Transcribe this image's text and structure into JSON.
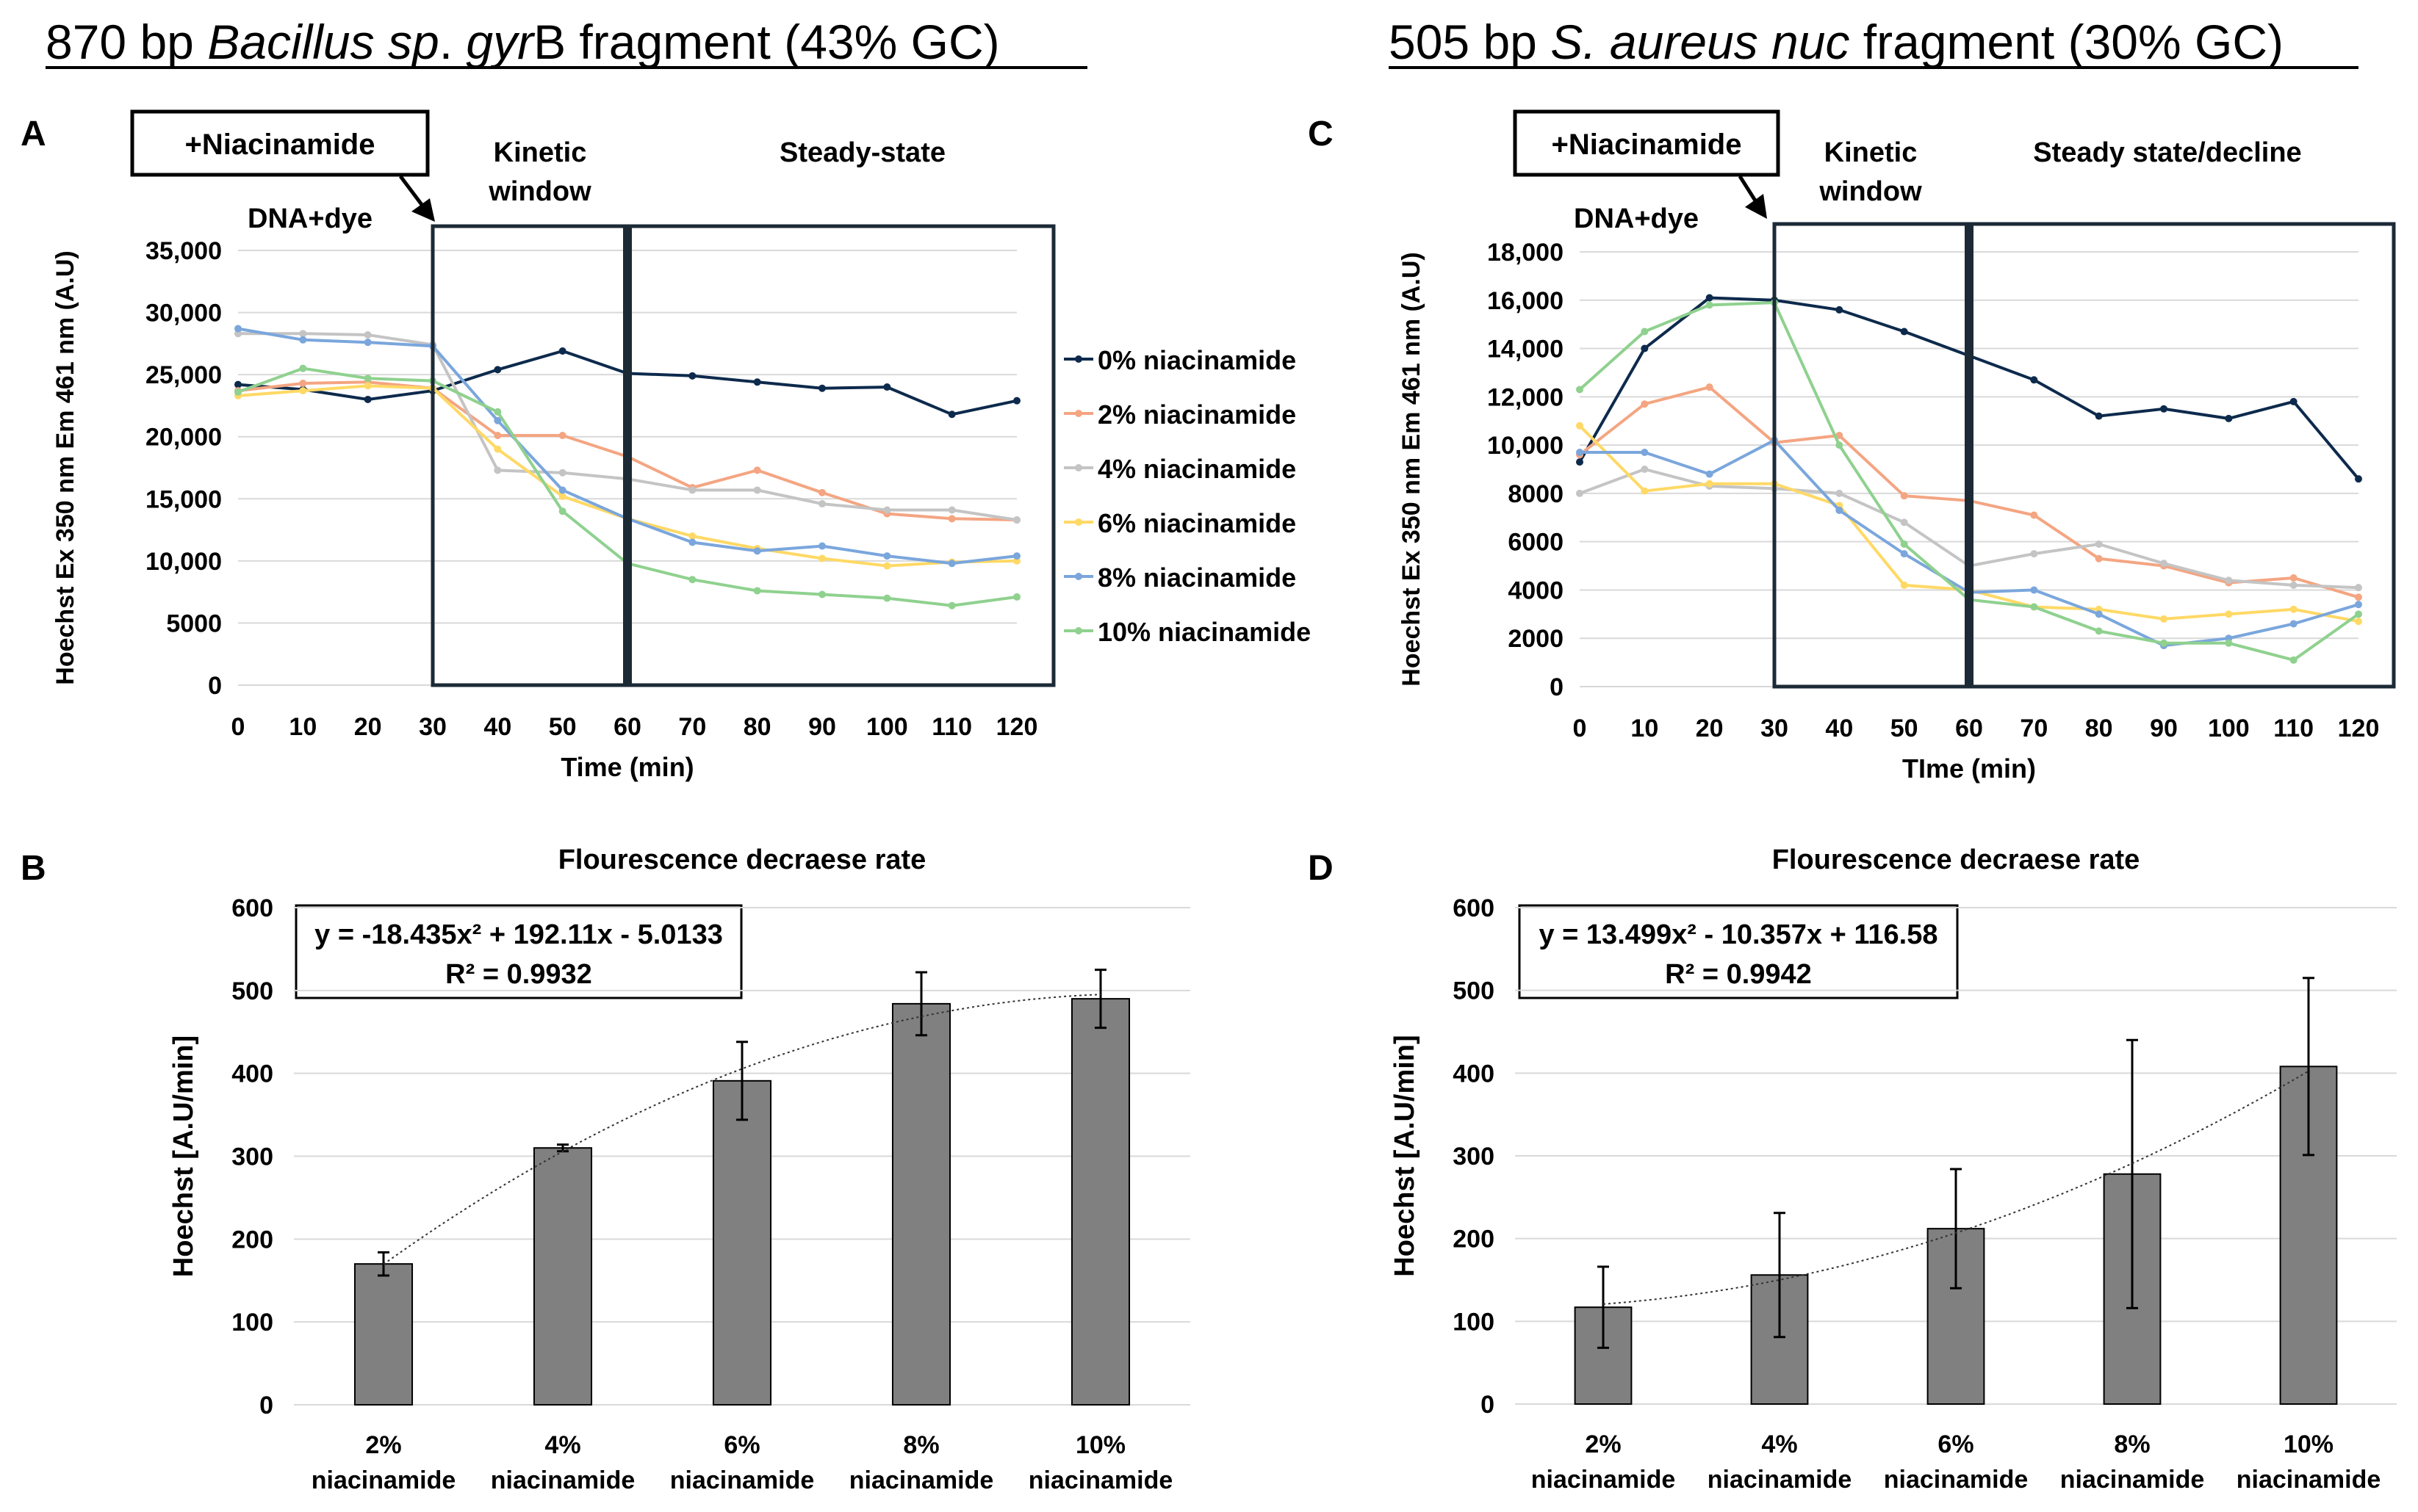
{
  "panels": {
    "left_title": {
      "prefix": "870 bp ",
      "italic1": "Bacillus sp",
      "mid": ". ",
      "italic2": "gyr",
      "suffix": "B fragment (43% GC)"
    },
    "right_title": {
      "prefix": "505 bp ",
      "italic1": "S. aureus nuc",
      "suffix": " fragment (30% GC)"
    },
    "A": {
      "letter": "A",
      "box_label": "+Niacinamide",
      "pre_label": "DNA+dye",
      "kinetic_label_1": "Kinetic",
      "kinetic_label_2": "window",
      "steady_label": "Steady-state"
    },
    "B": {
      "letter": "B",
      "equation": "y = -18.435x² + 192.11x - 5.0133",
      "r2": "R² = 0.9932"
    },
    "C": {
      "letter": "C",
      "box_label": "+Niacinamide",
      "pre_label": "DNA+dye",
      "kinetic_label_1": "Kinetic",
      "kinetic_label_2": "window",
      "steady_label": "Steady state/decline"
    },
    "D": {
      "letter": "D",
      "equation": "y = 13.499x² - 10.357x + 116.58",
      "r2": "R² = 0.9942"
    }
  },
  "legend": [
    "0% niacinamide",
    "2% niacinamide",
    "4% niacinamide",
    "6% niacinamide",
    "8% niacinamide",
    "10%  niacinamide"
  ],
  "colors": {
    "s0": "#0d2a4c",
    "s2": "#f4a582",
    "s4": "#c4c4c4",
    "s6": "#ffd966",
    "s8": "#7aa6dc",
    "s10": "#8fd18f",
    "bar": "#808080",
    "axis": "#d9d9d9",
    "text": "#000000",
    "box": "#1c2a36"
  },
  "chart_data": [
    {
      "id": "A",
      "type": "line",
      "x": [
        0,
        10,
        20,
        30,
        40,
        50,
        60,
        70,
        80,
        90,
        100,
        110,
        120
      ],
      "xlabel": "Time (min)",
      "ylabel": "Hoechst  Ex 350 nm Em 461 nm (A.U)",
      "ylim": [
        0,
        35000
      ],
      "yticks": [
        "0",
        "5000",
        "10,000",
        "15,000",
        "20,000",
        "25,000",
        "30,000",
        "35,000"
      ],
      "series": [
        {
          "name": "0% niacinamide",
          "values": [
            24200,
            23800,
            23000,
            23700,
            25400,
            26900,
            25100,
            24900,
            24400,
            23900,
            24000,
            21800,
            22900
          ]
        },
        {
          "name": "2% niacinamide",
          "values": [
            23700,
            24300,
            24400,
            23900,
            20100,
            20100,
            18400,
            15900,
            17300,
            15500,
            13800,
            13400,
            13300
          ]
        },
        {
          "name": "4% niacinamide",
          "values": [
            28300,
            28300,
            28200,
            27400,
            17300,
            17100,
            16600,
            15700,
            15700,
            14600,
            14100,
            14100,
            13300
          ]
        },
        {
          "name": "6% niacinamide",
          "values": [
            23300,
            23700,
            24100,
            23900,
            19000,
            15200,
            13400,
            12000,
            11000,
            10200,
            9600,
            9900,
            10000
          ]
        },
        {
          "name": "8% niacinamide",
          "values": [
            28700,
            27800,
            27600,
            27300,
            21300,
            15700,
            13400,
            11500,
            10800,
            11200,
            10400,
            9800,
            10400
          ]
        },
        {
          "name": "10%  niacinamide",
          "values": [
            23600,
            25500,
            24700,
            24500,
            22000,
            14000,
            9800,
            8500,
            7600,
            7300,
            7000,
            6400,
            7100
          ]
        }
      ]
    },
    {
      "id": "B",
      "type": "bar",
      "title": "Flourescence decraese rate",
      "categories": [
        "2% niacinamide",
        "4% niacinamide",
        "6% niacinamide",
        "8% niacinamide",
        "10% niacinamide"
      ],
      "values": [
        170,
        310,
        391,
        484,
        490
      ],
      "errors": [
        14,
        4,
        47,
        38,
        35
      ],
      "ylabel": "Hoechst [A.U/min]",
      "ylim": [
        0,
        600
      ],
      "yticks": [
        "0",
        "100",
        "200",
        "300",
        "400",
        "500",
        "600"
      ]
    },
    {
      "id": "C",
      "type": "line",
      "x": [
        0,
        10,
        20,
        30,
        40,
        50,
        60,
        70,
        80,
        90,
        100,
        110,
        120
      ],
      "xlabel": "TIme (min)",
      "ylabel": "Hoechst  Ex 350 nm  Em 461 nm (A.U)",
      "ylim": [
        0,
        18000
      ],
      "yticks": [
        "0",
        "2000",
        "4000",
        "6000",
        "8000",
        "10,000",
        "12,000",
        "14,000",
        "16,000",
        "18,000"
      ],
      "series": [
        {
          "name": "0% niacinamide",
          "values": [
            9300,
            14000,
            16100,
            16000,
            15600,
            14700,
            13700,
            12700,
            11200,
            11500,
            11100,
            11800,
            8600
          ]
        },
        {
          "name": "2% niacinamide",
          "values": [
            9600,
            11700,
            12400,
            10100,
            10400,
            7900,
            7700,
            7100,
            5300,
            5000,
            4300,
            4500,
            3700
          ]
        },
        {
          "name": "4% niacinamide",
          "values": [
            8000,
            9000,
            8300,
            8200,
            8000,
            6800,
            5000,
            5500,
            5900,
            5100,
            4400,
            4200,
            4100
          ]
        },
        {
          "name": "6% niacinamide",
          "values": [
            10800,
            8100,
            8400,
            8400,
            7500,
            4200,
            4000,
            3300,
            3200,
            2800,
            3000,
            3200,
            2700
          ]
        },
        {
          "name": "8% niacinamide",
          "values": [
            9700,
            9700,
            8800,
            10200,
            7300,
            5500,
            3900,
            4000,
            3000,
            1700,
            2000,
            2600,
            3400
          ]
        },
        {
          "name": "10%  niacinamide",
          "values": [
            12300,
            14700,
            15800,
            15900,
            10000,
            5900,
            3600,
            3300,
            2300,
            1800,
            1800,
            1100,
            3000
          ]
        }
      ]
    },
    {
      "id": "D",
      "type": "bar",
      "title": "Flourescence decraese rate",
      "categories": [
        "2% niacinamide",
        "4% niacinamide",
        "6% niacinamide",
        "8% niacinamide",
        "10% niacinamide"
      ],
      "values": [
        117,
        156,
        212,
        278,
        408
      ],
      "errors": [
        49,
        75,
        72,
        162,
        107
      ],
      "ylabel": "Hoechst [A.U/min]",
      "ylim": [
        0,
        600
      ],
      "yticks": [
        "0",
        "100",
        "200",
        "300",
        "400",
        "500",
        "600"
      ]
    }
  ]
}
